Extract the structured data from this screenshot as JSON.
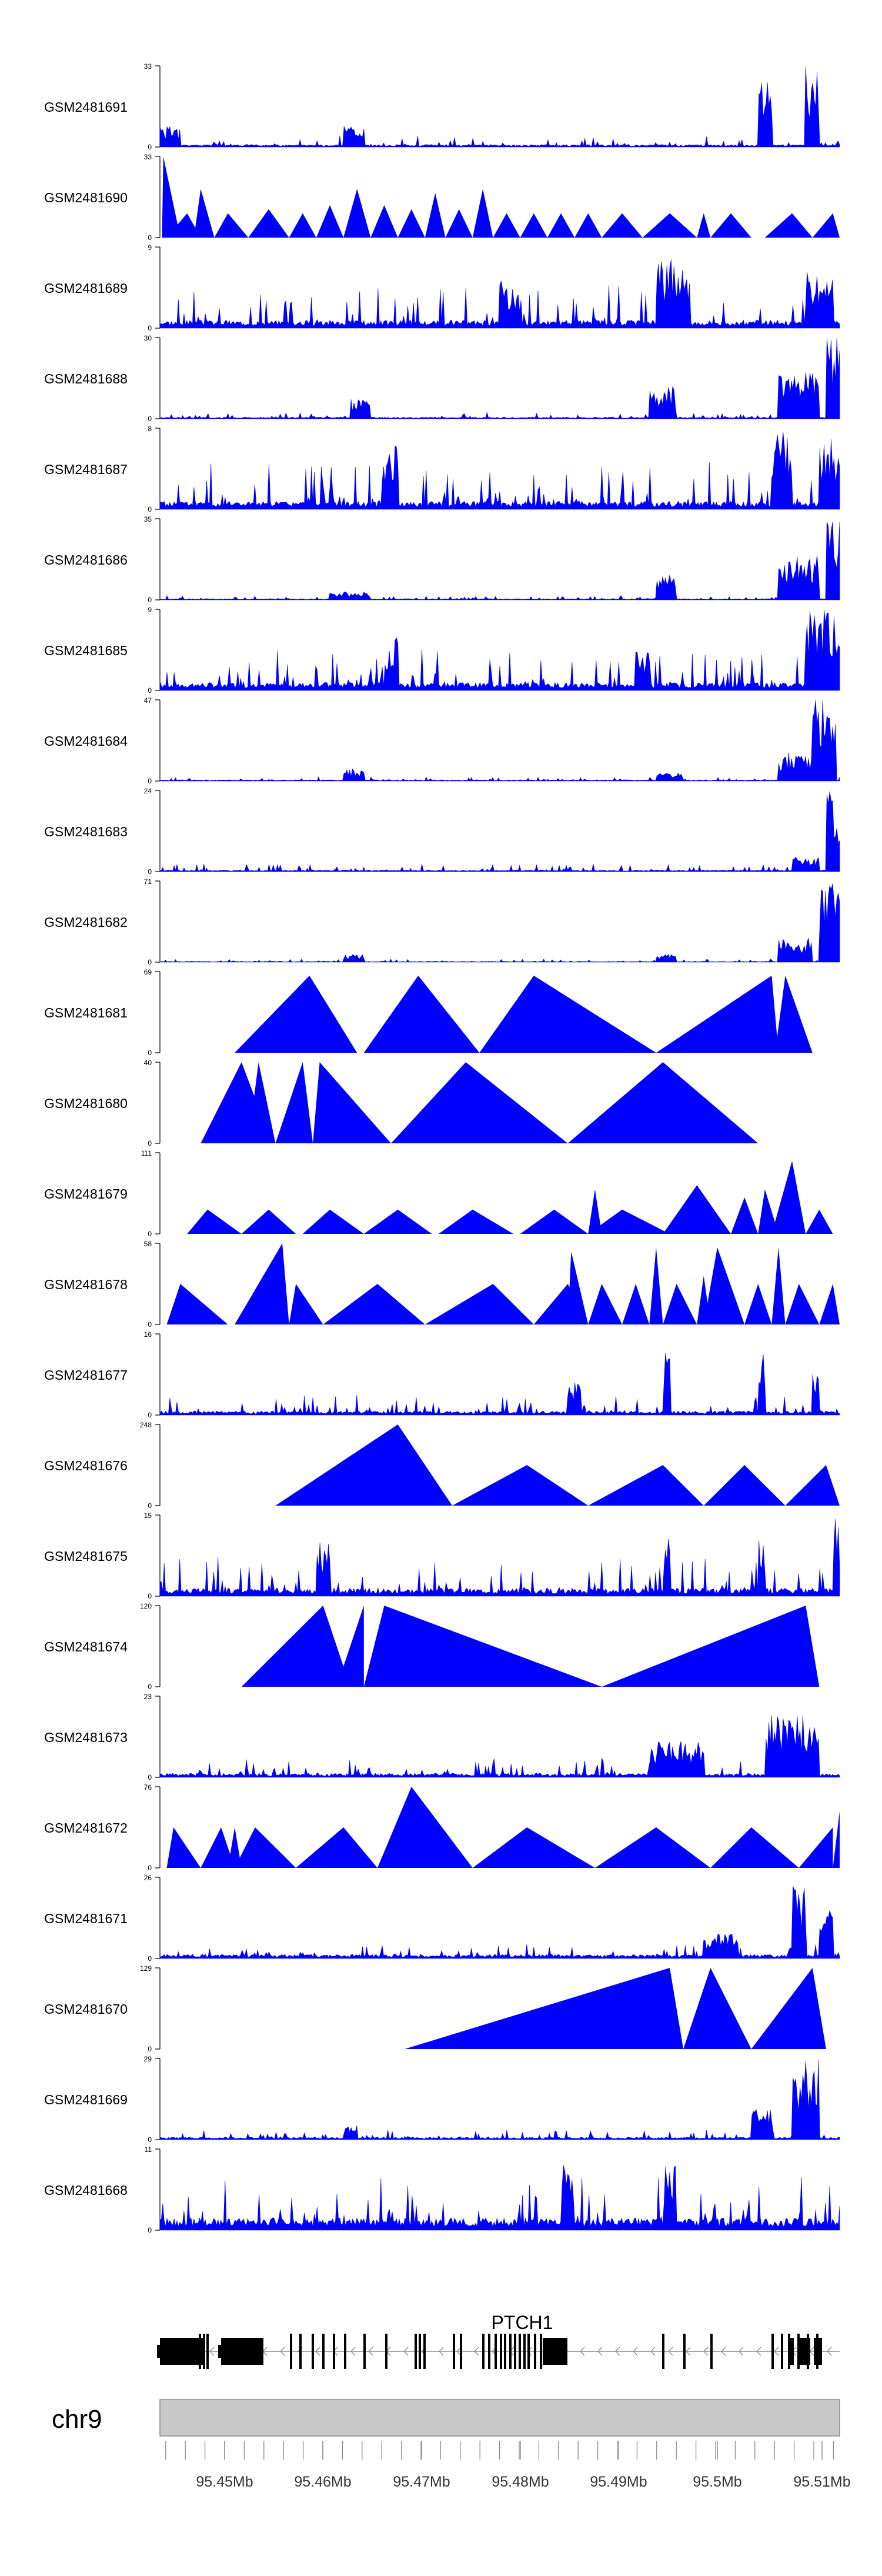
{
  "chart_data": {
    "type": "area",
    "tracks": [
      {
        "name": "GSM2481691",
        "ymax": "33",
        "ymin": "0",
        "style": "spiky",
        "seed": 1,
        "base": 0.03,
        "noise": 0.12,
        "hot": [
          [
            0.0,
            0.03,
            0.25
          ],
          [
            0.27,
            0.3,
            0.3
          ],
          [
            0.88,
            0.9,
            0.8
          ],
          [
            0.95,
            0.97,
            1.0
          ]
        ]
      },
      {
        "name": "GSM2481690",
        "ymax": "33",
        "ymin": "0",
        "style": "tri",
        "seed": 2,
        "base": 0.0,
        "noise": 0.0,
        "peaks": [
          [
            0.003,
            0.005,
            0.03,
            1.0
          ],
          [
            0.01,
            0.04,
            0.06,
            0.3
          ],
          [
            0.05,
            0.06,
            0.08,
            0.6
          ],
          [
            0.08,
            0.1,
            0.13,
            0.3
          ],
          [
            0.13,
            0.16,
            0.19,
            0.35
          ],
          [
            0.19,
            0.21,
            0.23,
            0.3
          ],
          [
            0.23,
            0.25,
            0.27,
            0.4
          ],
          [
            0.27,
            0.29,
            0.31,
            0.6
          ],
          [
            0.31,
            0.33,
            0.35,
            0.4
          ],
          [
            0.35,
            0.37,
            0.39,
            0.35
          ],
          [
            0.39,
            0.405,
            0.42,
            0.55
          ],
          [
            0.42,
            0.44,
            0.46,
            0.35
          ],
          [
            0.46,
            0.475,
            0.49,
            0.6
          ],
          [
            0.49,
            0.51,
            0.53,
            0.3
          ],
          [
            0.53,
            0.55,
            0.57,
            0.3
          ],
          [
            0.57,
            0.59,
            0.61,
            0.3
          ],
          [
            0.61,
            0.63,
            0.65,
            0.3
          ],
          [
            0.65,
            0.68,
            0.71,
            0.3
          ],
          [
            0.71,
            0.75,
            0.79,
            0.3
          ],
          [
            0.79,
            0.8,
            0.81,
            0.3
          ],
          [
            0.81,
            0.84,
            0.87,
            0.3
          ],
          [
            0.89,
            0.93,
            0.96,
            0.3
          ],
          [
            0.96,
            0.99,
            1.0,
            0.3
          ]
        ]
      },
      {
        "name": "GSM2481689",
        "ymax": "9",
        "ymin": "0",
        "style": "spiky",
        "seed": 3,
        "base": 0.1,
        "noise": 0.45,
        "hot": [
          [
            0.5,
            0.53,
            0.6
          ],
          [
            0.73,
            0.78,
            0.85
          ],
          [
            0.95,
            0.99,
            0.7
          ]
        ]
      },
      {
        "name": "GSM2481688",
        "ymax": "30",
        "ymin": "0",
        "style": "spiky",
        "seed": 4,
        "base": 0.02,
        "noise": 0.06,
        "hot": [
          [
            0.28,
            0.31,
            0.25
          ],
          [
            0.72,
            0.76,
            0.4
          ],
          [
            0.91,
            0.97,
            0.6
          ],
          [
            0.98,
            1.0,
            1.0
          ]
        ]
      },
      {
        "name": "GSM2481687",
        "ymax": "8",
        "ymin": "0",
        "style": "spiky",
        "seed": 5,
        "base": 0.1,
        "noise": 0.5,
        "hot": [
          [
            0.33,
            0.35,
            0.8
          ],
          [
            0.9,
            0.93,
            1.0
          ],
          [
            0.97,
            1.0,
            0.9
          ]
        ]
      },
      {
        "name": "GSM2481686",
        "ymax": "35",
        "ymin": "0",
        "style": "spiky",
        "seed": 6,
        "base": 0.015,
        "noise": 0.04,
        "hot": [
          [
            0.25,
            0.31,
            0.1
          ],
          [
            0.73,
            0.76,
            0.35
          ],
          [
            0.91,
            0.97,
            0.55
          ],
          [
            0.98,
            1.0,
            1.0
          ]
        ]
      },
      {
        "name": "GSM2481685",
        "ymax": "9",
        "ymin": "0",
        "style": "spiky",
        "seed": 7,
        "base": 0.1,
        "noise": 0.45,
        "hot": [
          [
            0.33,
            0.35,
            0.7
          ],
          [
            0.7,
            0.72,
            0.6
          ],
          [
            0.95,
            1.0,
            1.0
          ]
        ]
      },
      {
        "name": "GSM2481684",
        "ymax": "47",
        "ymin": "0",
        "style": "spiky",
        "seed": 8,
        "base": 0.015,
        "noise": 0.04,
        "hot": [
          [
            0.27,
            0.3,
            0.15
          ],
          [
            0.73,
            0.77,
            0.1
          ],
          [
            0.91,
            0.96,
            0.35
          ],
          [
            0.96,
            0.995,
            1.0
          ]
        ]
      },
      {
        "name": "GSM2481683",
        "ymax": "24",
        "ymin": "0",
        "style": "spiky",
        "seed": 9,
        "base": 0.02,
        "noise": 0.08,
        "hot": [
          [
            0.93,
            0.97,
            0.2
          ],
          [
            0.98,
            1.0,
            1.0
          ]
        ]
      },
      {
        "name": "GSM2481682",
        "ymax": "71",
        "ymin": "0",
        "style": "spiky",
        "seed": 10,
        "base": 0.01,
        "noise": 0.03,
        "hot": [
          [
            0.27,
            0.3,
            0.1
          ],
          [
            0.73,
            0.76,
            0.1
          ],
          [
            0.91,
            0.96,
            0.3
          ],
          [
            0.97,
            1.0,
            1.0
          ]
        ]
      },
      {
        "name": "GSM2481681",
        "ymax": "69",
        "ymin": "0",
        "style": "tri",
        "seed": 11,
        "base": 0.0,
        "noise": 0.0,
        "peaks": [
          [
            0.11,
            0.22,
            0.29,
            0.95
          ],
          [
            0.3,
            0.38,
            0.47,
            0.95
          ],
          [
            0.47,
            0.55,
            0.73,
            0.95
          ],
          [
            0.73,
            0.9,
            0.91,
            0.95
          ],
          [
            0.905,
            0.92,
            0.96,
            0.95
          ]
        ]
      },
      {
        "name": "GSM2481680",
        "ymax": "40",
        "ymin": "0",
        "style": "tri",
        "seed": 12,
        "base": 0.0,
        "noise": 0.0,
        "peaks": [
          [
            0.06,
            0.12,
            0.165,
            1.0
          ],
          [
            0.13,
            0.145,
            0.17,
            1.0
          ],
          [
            0.17,
            0.21,
            0.225,
            1.0
          ],
          [
            0.225,
            0.235,
            0.34,
            1.0
          ],
          [
            0.34,
            0.45,
            0.6,
            1.0
          ],
          [
            0.6,
            0.74,
            0.88,
            1.0
          ]
        ]
      },
      {
        "name": "GSM2481679",
        "ymax": "111",
        "ymin": "0",
        "style": "tri",
        "seed": 13,
        "base": 0.0,
        "noise": 0.0,
        "peaks": [
          [
            0.04,
            0.07,
            0.12,
            0.3
          ],
          [
            0.08,
            0.08,
            0.1,
            0.1
          ],
          [
            0.12,
            0.16,
            0.2,
            0.3
          ],
          [
            0.15,
            0.17,
            0.19,
            0.2
          ],
          [
            0.21,
            0.25,
            0.3,
            0.3
          ],
          [
            0.3,
            0.35,
            0.4,
            0.3
          ],
          [
            0.41,
            0.46,
            0.52,
            0.3
          ],
          [
            0.53,
            0.58,
            0.63,
            0.3
          ],
          [
            0.63,
            0.64,
            0.65,
            0.55
          ],
          [
            0.63,
            0.68,
            0.75,
            0.3
          ],
          [
            0.74,
            0.79,
            0.84,
            0.6
          ],
          [
            0.84,
            0.86,
            0.88,
            0.45
          ],
          [
            0.88,
            0.89,
            0.91,
            0.55
          ],
          [
            0.9,
            0.93,
            0.95,
            0.9
          ],
          [
            0.95,
            0.97,
            0.99,
            0.3
          ]
        ]
      },
      {
        "name": "GSM2481678",
        "ymax": "58",
        "ymin": "0",
        "style": "tri",
        "seed": 14,
        "base": 0.0,
        "noise": 0.0,
        "peaks": [
          [
            0.01,
            0.03,
            0.1,
            0.5
          ],
          [
            0.11,
            0.18,
            0.19,
            1.0
          ],
          [
            0.19,
            0.2,
            0.24,
            0.5
          ],
          [
            0.24,
            0.32,
            0.39,
            0.5
          ],
          [
            0.39,
            0.49,
            0.55,
            0.5
          ],
          [
            0.55,
            0.6,
            0.63,
            0.5
          ],
          [
            0.6,
            0.605,
            0.63,
            0.9
          ],
          [
            0.63,
            0.65,
            0.68,
            0.5
          ],
          [
            0.68,
            0.7,
            0.72,
            0.5
          ],
          [
            0.72,
            0.73,
            0.74,
            0.95
          ],
          [
            0.74,
            0.76,
            0.79,
            0.5
          ],
          [
            0.79,
            0.8,
            0.81,
            0.6
          ],
          [
            0.8,
            0.82,
            0.86,
            0.95
          ],
          [
            0.86,
            0.88,
            0.9,
            0.5
          ],
          [
            0.9,
            0.91,
            0.92,
            0.95
          ],
          [
            0.92,
            0.94,
            0.97,
            0.5
          ],
          [
            0.97,
            0.99,
            1.0,
            0.5
          ]
        ]
      },
      {
        "name": "GSM2481677",
        "ymax": "16",
        "ymin": "0",
        "style": "spiky",
        "seed": 15,
        "base": 0.05,
        "noise": 0.2,
        "hot": [
          [
            0.6,
            0.62,
            0.4
          ],
          [
            0.74,
            0.75,
            0.8
          ],
          [
            0.88,
            0.89,
            1.0
          ],
          [
            0.96,
            0.97,
            0.5
          ]
        ]
      },
      {
        "name": "GSM2481676",
        "ymax": "248",
        "ymin": "0",
        "style": "tri",
        "seed": 16,
        "base": 0.0,
        "noise": 0.0,
        "peaks": [
          [
            0.17,
            0.35,
            0.43,
            1.0
          ],
          [
            0.43,
            0.54,
            0.63,
            0.5
          ],
          [
            0.63,
            0.74,
            0.8,
            0.5
          ],
          [
            0.8,
            0.86,
            0.92,
            0.5
          ],
          [
            0.92,
            0.98,
            1.0,
            0.5
          ]
        ]
      },
      {
        "name": "GSM2481675",
        "ymax": "15",
        "ymin": "0",
        "style": "spiky",
        "seed": 17,
        "base": 0.1,
        "noise": 0.4,
        "hot": [
          [
            0.23,
            0.25,
            0.7
          ],
          [
            0.74,
            0.75,
            0.8
          ],
          [
            0.88,
            0.89,
            0.8
          ],
          [
            0.99,
            1.0,
            1.0
          ]
        ]
      },
      {
        "name": "GSM2481674",
        "ymax": "120",
        "ymin": "0",
        "style": "tri",
        "seed": 18,
        "base": 0.0,
        "noise": 0.0,
        "peaks": [
          [
            0.12,
            0.24,
            0.28,
            1.0
          ],
          [
            0.26,
            0.3,
            0.3,
            1.0
          ],
          [
            0.3,
            0.33,
            0.65,
            1.0
          ],
          [
            0.65,
            0.95,
            0.97,
            1.0
          ]
        ]
      },
      {
        "name": "GSM2481673",
        "ymax": "23",
        "ymin": "0",
        "style": "spiky",
        "seed": 19,
        "base": 0.05,
        "noise": 0.2,
        "hot": [
          [
            0.72,
            0.8,
            0.45
          ],
          [
            0.89,
            0.97,
            0.8
          ]
        ]
      },
      {
        "name": "GSM2481672",
        "ymax": "76",
        "ymin": "0",
        "style": "tri",
        "seed": 19,
        "base": 0.0,
        "noise": 0.0,
        "peaks": [
          [
            0.01,
            0.02,
            0.06,
            0.5
          ],
          [
            0.06,
            0.09,
            0.11,
            0.5
          ],
          [
            0.1,
            0.11,
            0.12,
            0.5
          ],
          [
            0.11,
            0.14,
            0.2,
            0.5
          ],
          [
            0.2,
            0.27,
            0.32,
            0.5
          ],
          [
            0.32,
            0.37,
            0.46,
            1.0
          ],
          [
            0.46,
            0.54,
            0.64,
            0.5
          ],
          [
            0.64,
            0.73,
            0.81,
            0.5
          ],
          [
            0.81,
            0.87,
            0.94,
            0.5
          ],
          [
            0.94,
            0.99,
            0.99,
            0.5
          ],
          [
            0.99,
            1.0,
            1.0,
            0.7
          ]
        ]
      },
      {
        "name": "GSM2481671",
        "ymax": "26",
        "ymin": "0",
        "style": "spiky",
        "seed": 21,
        "base": 0.05,
        "noise": 0.15,
        "hot": [
          [
            0.8,
            0.85,
            0.3
          ],
          [
            0.93,
            0.95,
            0.9
          ],
          [
            0.97,
            0.99,
            0.7
          ]
        ]
      },
      {
        "name": "GSM2481670",
        "ymax": "129",
        "ymin": "0",
        "style": "tri",
        "seed": 22,
        "base": 0.0,
        "noise": 0.0,
        "peaks": [
          [
            0.36,
            0.75,
            0.77,
            1.0
          ],
          [
            0.77,
            0.81,
            0.87,
            1.0
          ],
          [
            0.87,
            0.96,
            0.98,
            1.0
          ]
        ]
      },
      {
        "name": "GSM2481669",
        "ymax": "29",
        "ymin": "0",
        "style": "spiky",
        "seed": 23,
        "base": 0.03,
        "noise": 0.1,
        "hot": [
          [
            0.27,
            0.29,
            0.2
          ],
          [
            0.87,
            0.9,
            0.4
          ],
          [
            0.93,
            0.97,
            1.0
          ]
        ]
      },
      {
        "name": "GSM2481668",
        "ymax": "11",
        "ymin": "0",
        "style": "spiky",
        "seed": 24,
        "base": 0.15,
        "noise": 0.6,
        "hot": [
          [
            0.59,
            0.61,
            0.9
          ],
          [
            0.74,
            0.76,
            0.8
          ]
        ]
      }
    ],
    "gene": {
      "label": "PTCH1"
    },
    "chromosome": "chr9",
    "x_ticks": [
      "95.45Mb",
      "95.46Mb",
      "95.47Mb",
      "95.48Mb",
      "95.49Mb",
      "95.5Mb",
      "95.51Mb"
    ],
    "color": "#0000ff"
  }
}
